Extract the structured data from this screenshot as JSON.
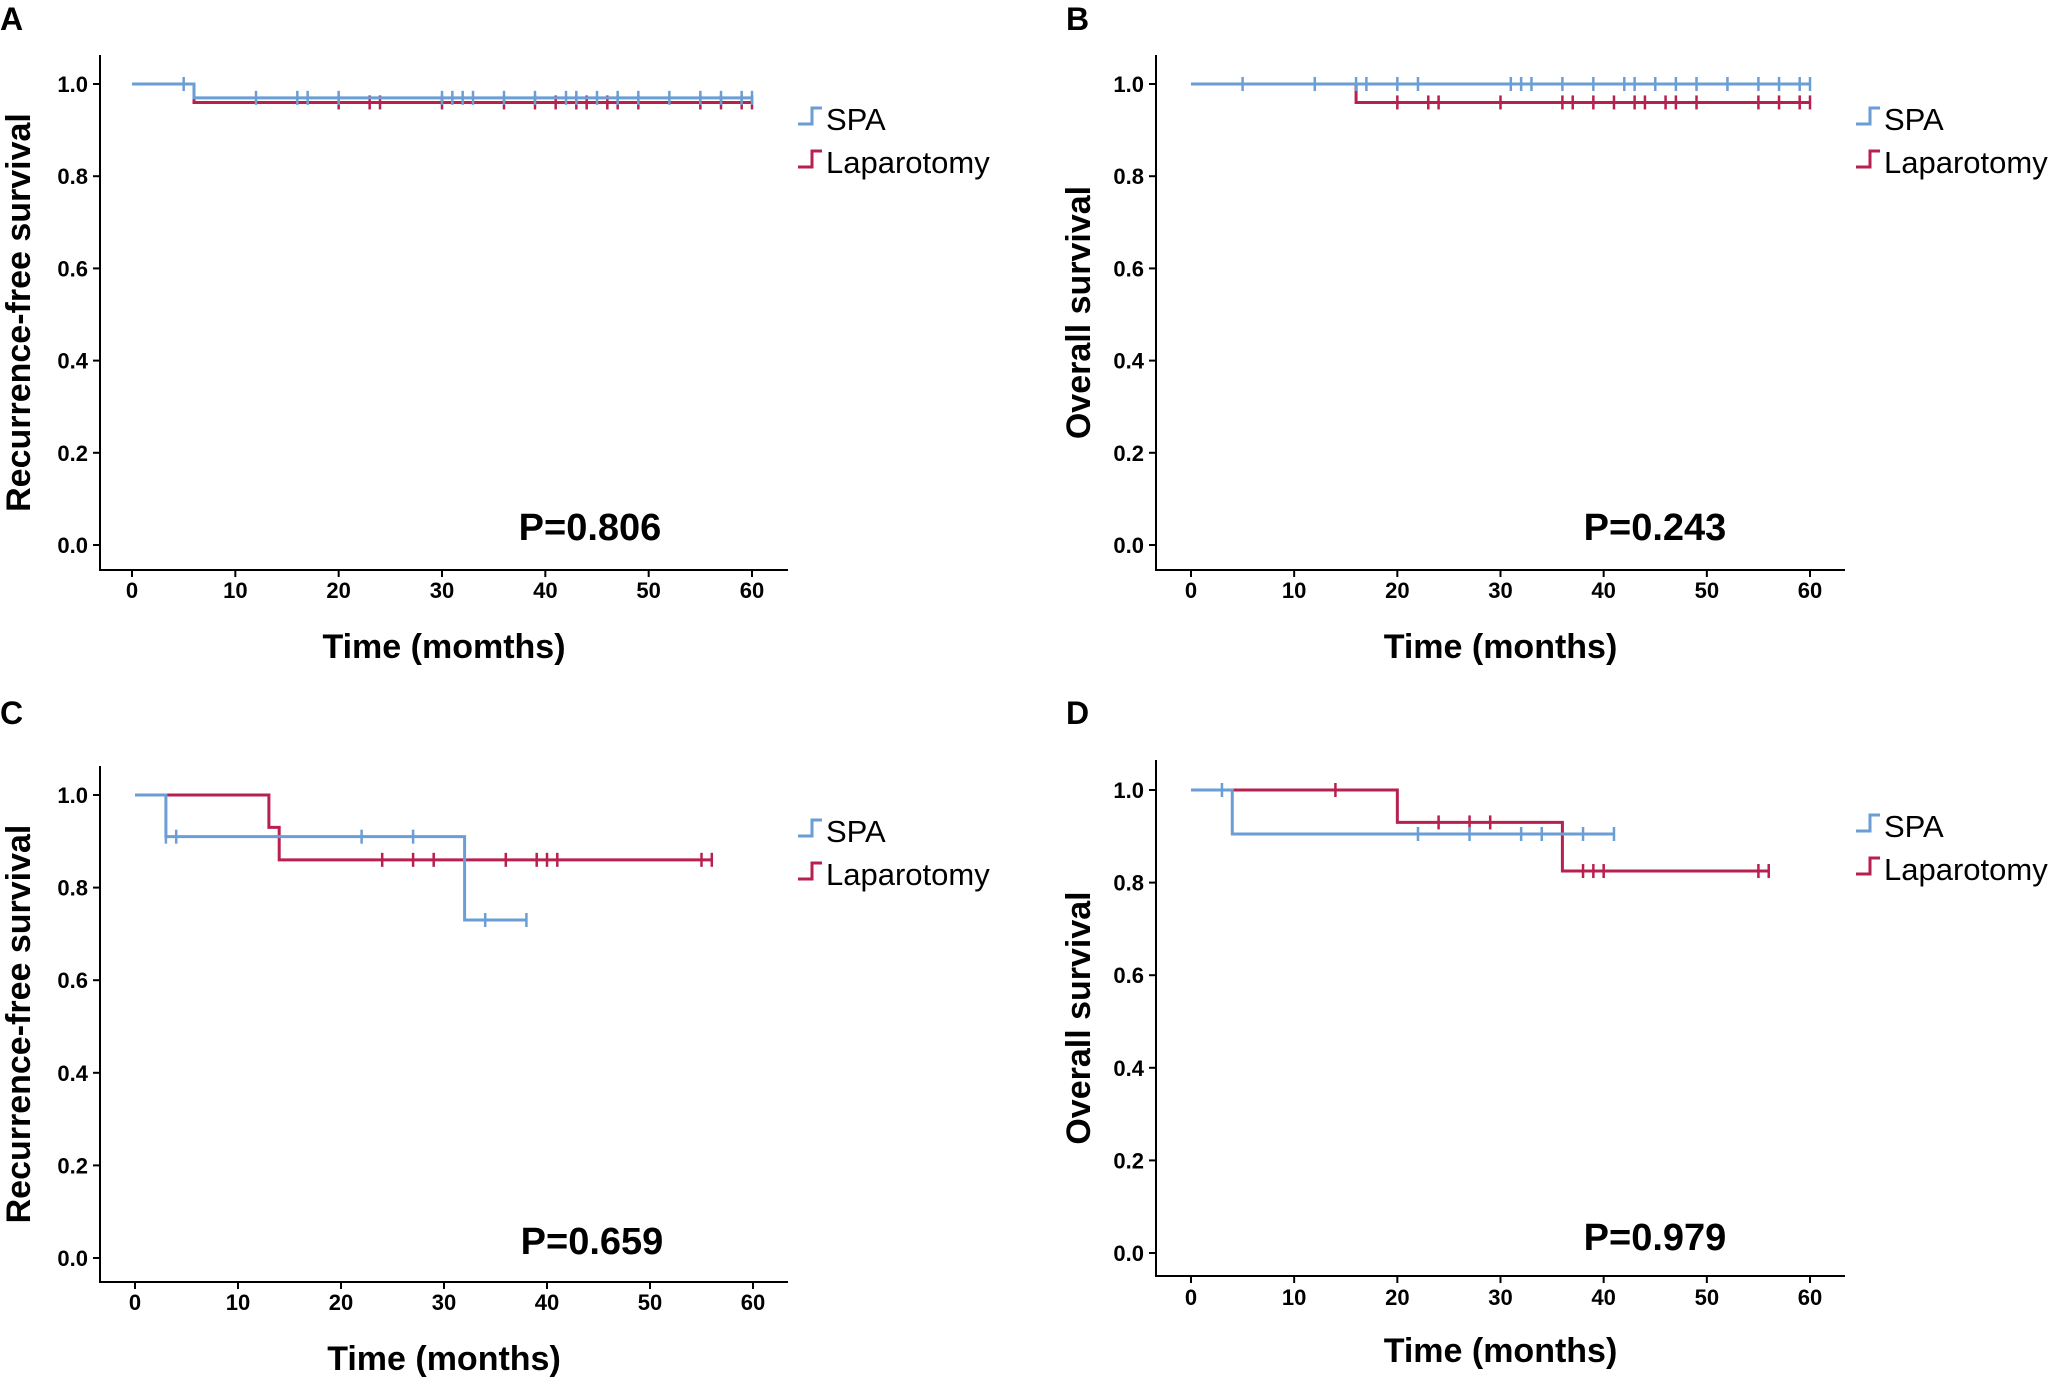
{
  "series_colors": {
    "SPA": "#6a9ed4",
    "Laparotomy": "#b8204f"
  },
  "chart_data": [
    {
      "panel": "A",
      "type": "line",
      "subtype": "kaplan-meier",
      "xlabel": "Time (momths)",
      "ylabel": "Recurrence-free survival",
      "xlim": [
        0,
        60
      ],
      "ylim": [
        0,
        1.0
      ],
      "xticks": [
        0,
        10,
        20,
        30,
        40,
        50,
        60
      ],
      "yticks": [
        "0.0",
        "0.2",
        "0.4",
        "0.6",
        "0.8",
        "1.0"
      ],
      "pvalue": "P=0.806",
      "legend": [
        "SPA",
        "Laparotomy"
      ],
      "series": [
        {
          "name": "SPA",
          "steps": [
            [
              0,
              1.0
            ],
            [
              6,
              0.97
            ],
            [
              60,
              0.97
            ]
          ],
          "censored": [
            5,
            12,
            16,
            17,
            20,
            30,
            31,
            32,
            33,
            36,
            39,
            42,
            43,
            45,
            47,
            49,
            52,
            55,
            57,
            59,
            60
          ]
        },
        {
          "name": "Laparotomy",
          "steps": [
            [
              0,
              1.0
            ],
            [
              6,
              0.96
            ],
            [
              60,
              0.96
            ]
          ],
          "censored": [
            20,
            23,
            24,
            30,
            36,
            39,
            41,
            43,
            44,
            46,
            47,
            49,
            55,
            57,
            59,
            60
          ]
        }
      ]
    },
    {
      "panel": "B",
      "type": "line",
      "subtype": "kaplan-meier",
      "xlabel": "Time (months)",
      "ylabel": "Overall survival",
      "xlim": [
        0,
        60
      ],
      "ylim": [
        0,
        1.0
      ],
      "xticks": [
        0,
        10,
        20,
        30,
        40,
        50,
        60
      ],
      "yticks": [
        "0.0",
        "0.2",
        "0.4",
        "0.6",
        "0.8",
        "1.0"
      ],
      "pvalue": "P=0.243",
      "legend": [
        "SPA",
        "Laparotomy"
      ],
      "series": [
        {
          "name": "SPA",
          "steps": [
            [
              0,
              1.0
            ],
            [
              60,
              1.0
            ]
          ],
          "censored": [
            5,
            12,
            16,
            17,
            20,
            22,
            31,
            32,
            33,
            36,
            39,
            42,
            43,
            45,
            47,
            49,
            52,
            55,
            57,
            59,
            60
          ]
        },
        {
          "name": "Laparotomy",
          "steps": [
            [
              0,
              1.0
            ],
            [
              16,
              0.96
            ],
            [
              60,
              0.96
            ]
          ],
          "censored": [
            20,
            23,
            24,
            30,
            36,
            37,
            39,
            41,
            43,
            44,
            46,
            47,
            49,
            55,
            57,
            59,
            60
          ]
        }
      ]
    },
    {
      "panel": "C",
      "type": "line",
      "subtype": "kaplan-meier",
      "xlabel": "Time (months)",
      "ylabel": "Recurrence-free survival",
      "xlim": [
        0,
        60
      ],
      "ylim": [
        0,
        1.0
      ],
      "xticks": [
        0,
        10,
        20,
        30,
        40,
        50,
        60
      ],
      "yticks": [
        "0.0",
        "0.2",
        "0.4",
        "0.6",
        "0.8",
        "1.0"
      ],
      "pvalue": "P=0.659",
      "legend": [
        "SPA",
        "Laparotomy"
      ],
      "series": [
        {
          "name": "SPA",
          "steps": [
            [
              0,
              1.0
            ],
            [
              3,
              0.91
            ],
            [
              32,
              0.73
            ],
            [
              38,
              0.73
            ]
          ],
          "censored": [
            3,
            4,
            22,
            27,
            34,
            38
          ]
        },
        {
          "name": "Laparotomy",
          "steps": [
            [
              0,
              1.0
            ],
            [
              13,
              0.93
            ],
            [
              14,
              0.86
            ],
            [
              56,
              0.86
            ]
          ],
          "censored": [
            24,
            27,
            29,
            36,
            39,
            40,
            41,
            55,
            56
          ]
        }
      ]
    },
    {
      "panel": "D",
      "type": "line",
      "subtype": "kaplan-meier",
      "xlabel": "Time (months)",
      "ylabel": "Overall survival",
      "xlim": [
        0,
        60
      ],
      "ylim": [
        0,
        1.0
      ],
      "xticks": [
        0,
        10,
        20,
        30,
        40,
        50,
        60
      ],
      "yticks": [
        "0.0",
        "0.2",
        "0.4",
        "0.6",
        "0.8",
        "1.0"
      ],
      "pvalue": "P=0.979",
      "legend": [
        "SPA",
        "Laparotomy"
      ],
      "series": [
        {
          "name": "SPA",
          "steps": [
            [
              0,
              1.0
            ],
            [
              4,
              0.905
            ],
            [
              41,
              0.905
            ]
          ],
          "censored": [
            3,
            22,
            27,
            32,
            34,
            38,
            41
          ]
        },
        {
          "name": "Laparotomy",
          "steps": [
            [
              0,
              1.0
            ],
            [
              20,
              0.93
            ],
            [
              36,
              0.825
            ],
            [
              56,
              0.825
            ]
          ],
          "censored": [
            14,
            24,
            27,
            29,
            38,
            39,
            40,
            55,
            56
          ]
        }
      ]
    }
  ]
}
